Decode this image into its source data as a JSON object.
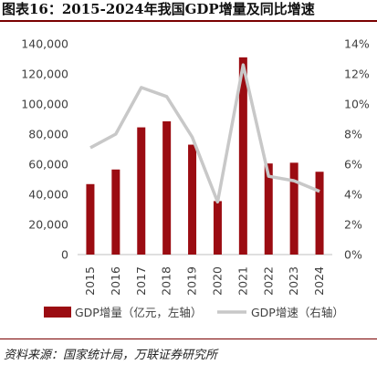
{
  "figure_title": "图表16：2015-2024年我国GDP增量及同比增速",
  "source": "资料来源：国家统计局，万联证券研究所",
  "colors": {
    "bar": "#9b0c12",
    "line": "#c8c8c8",
    "rule": "#7a0000"
  },
  "chart_data": {
    "type": "bar",
    "categories": [
      "2015",
      "2016",
      "2017",
      "2018",
      "2019",
      "2020",
      "2021",
      "2022",
      "2023",
      "2024"
    ],
    "series": [
      {
        "name": "GDP增量（亿元，左轴）",
        "type": "bar",
        "axis": "left",
        "values": [
          46800,
          56500,
          84500,
          88500,
          73000,
          35500,
          131000,
          60500,
          61000,
          55000
        ]
      },
      {
        "name": "GDP增速（右轴）",
        "type": "line",
        "axis": "right",
        "values": [
          7.1,
          8.0,
          11.1,
          10.5,
          7.8,
          3.5,
          12.6,
          5.2,
          4.9,
          4.2
        ]
      }
    ],
    "left_axis": {
      "ylim": [
        0,
        140000
      ],
      "tick_labels": [
        "0",
        "20,000",
        "40,000",
        "60,000",
        "80,000",
        "100,000",
        "120,000",
        "140,000"
      ]
    },
    "right_axis": {
      "ylim": [
        0,
        14
      ],
      "tick_labels": [
        "0%",
        "2%",
        "4%",
        "6%",
        "8%",
        "10%",
        "12%",
        "14%"
      ]
    },
    "legend_position": "bottom",
    "grid": false
  }
}
